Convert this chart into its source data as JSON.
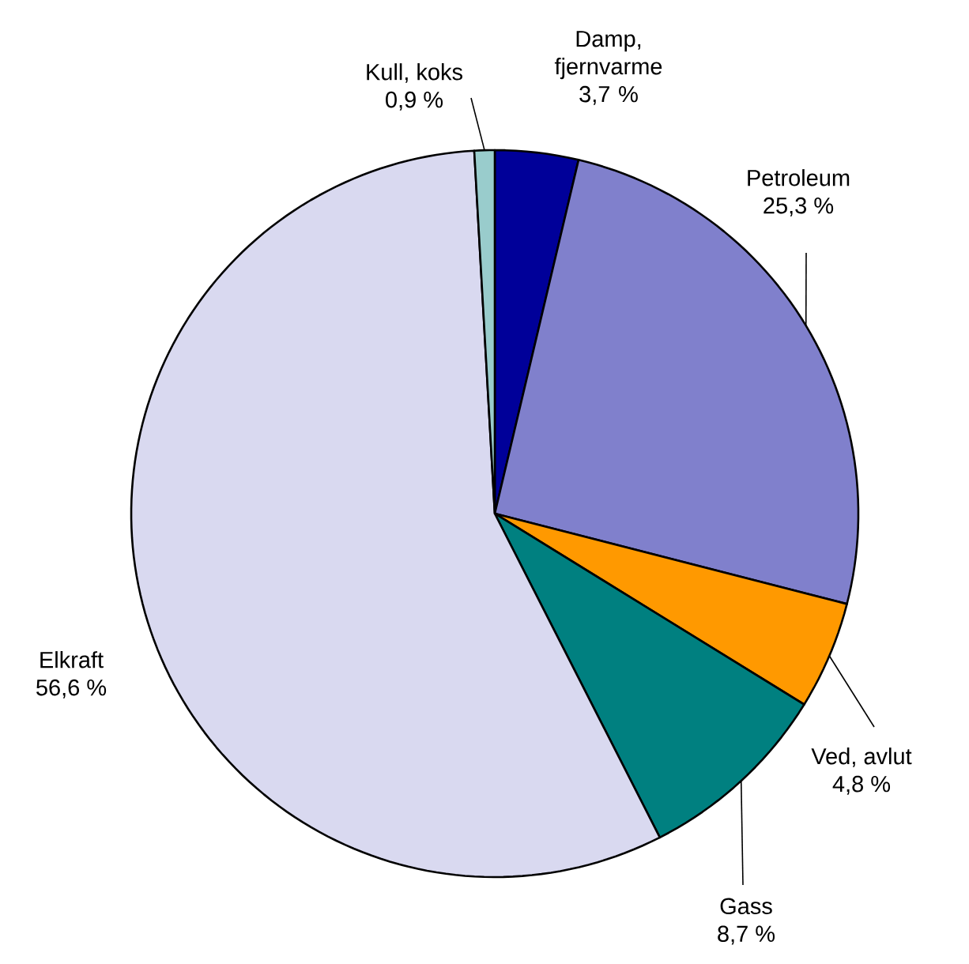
{
  "chart_data": {
    "type": "pie",
    "categories": [
      "Damp, fjernvarme",
      "Petroleum",
      "Ved, avlut",
      "Gass",
      "Elkraft",
      "Kull, koks"
    ],
    "values": [
      3.7,
      25.3,
      4.8,
      8.7,
      56.6,
      0.9
    ],
    "value_labels": [
      "3,7 %",
      "25,3 %",
      "4,8 %",
      "8,7 %",
      "56,6 %",
      "0,9 %"
    ],
    "colors": [
      "#000099",
      "#8080cc",
      "#ff9900",
      "#008080",
      "#d9d9f0",
      "#99cccc"
    ]
  }
}
